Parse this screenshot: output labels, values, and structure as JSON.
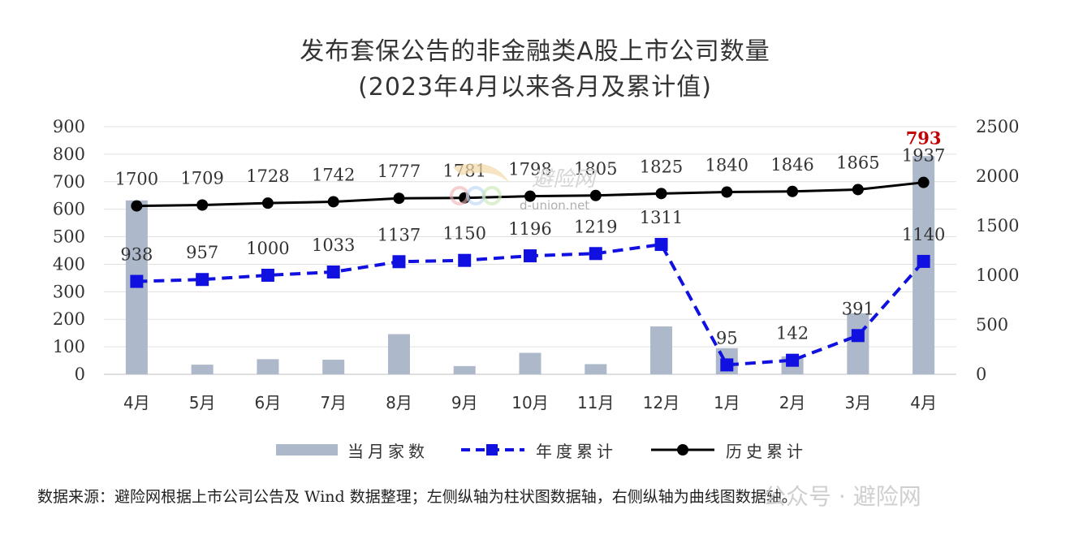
{
  "title": {
    "line1": "发布套保公告的非金融类A股上市公司数量",
    "line2": "(2023年4月以来各月及累计值)"
  },
  "chart_data": {
    "type": "bar+line",
    "categories": [
      "4月",
      "5月",
      "6月",
      "7月",
      "8月",
      "9月",
      "10月",
      "11月",
      "12月",
      "1月",
      "2月",
      "3月",
      "4月"
    ],
    "left_axis": {
      "min": 0,
      "max": 900,
      "ticks": [
        0,
        100,
        200,
        300,
        400,
        500,
        600,
        700,
        800,
        900
      ]
    },
    "right_axis": {
      "min": 0,
      "max": 2500,
      "ticks": [
        0,
        500,
        1000,
        1500,
        2000,
        2500
      ]
    },
    "grid": true,
    "legend_position": "bottom",
    "series": [
      {
        "name": "当月家数",
        "type": "bar",
        "axis": "left",
        "color": "#adb9ca",
        "values": [
          632,
          35,
          55,
          53,
          146,
          30,
          78,
          37,
          174,
          95,
          65,
          222,
          793
        ],
        "labeled_values": {
          "12": "793"
        }
      },
      {
        "name": "年度累计",
        "type": "line-dashed",
        "axis": "right",
        "color": "#1010e0",
        "values": [
          938,
          957,
          1000,
          1033,
          1137,
          1150,
          1196,
          1219,
          1311,
          95,
          142,
          391,
          1140
        ]
      },
      {
        "name": "历史累计",
        "type": "line",
        "axis": "right",
        "color": "#000000",
        "values": [
          1700,
          1709,
          1728,
          1742,
          1777,
          1781,
          1798,
          1805,
          1825,
          1840,
          1846,
          1865,
          1937
        ]
      }
    ],
    "highlight_color": "#c00000"
  },
  "watermark": {
    "brand": "避险网",
    "domain": "d-union.net",
    "bottom": "公众号 · 避险网"
  },
  "source_note": "数据来源：避险网根据上市公司公告及 Wind 数据整理；左侧纵轴为柱状图数据轴，右侧纵轴为曲线图数据轴。"
}
